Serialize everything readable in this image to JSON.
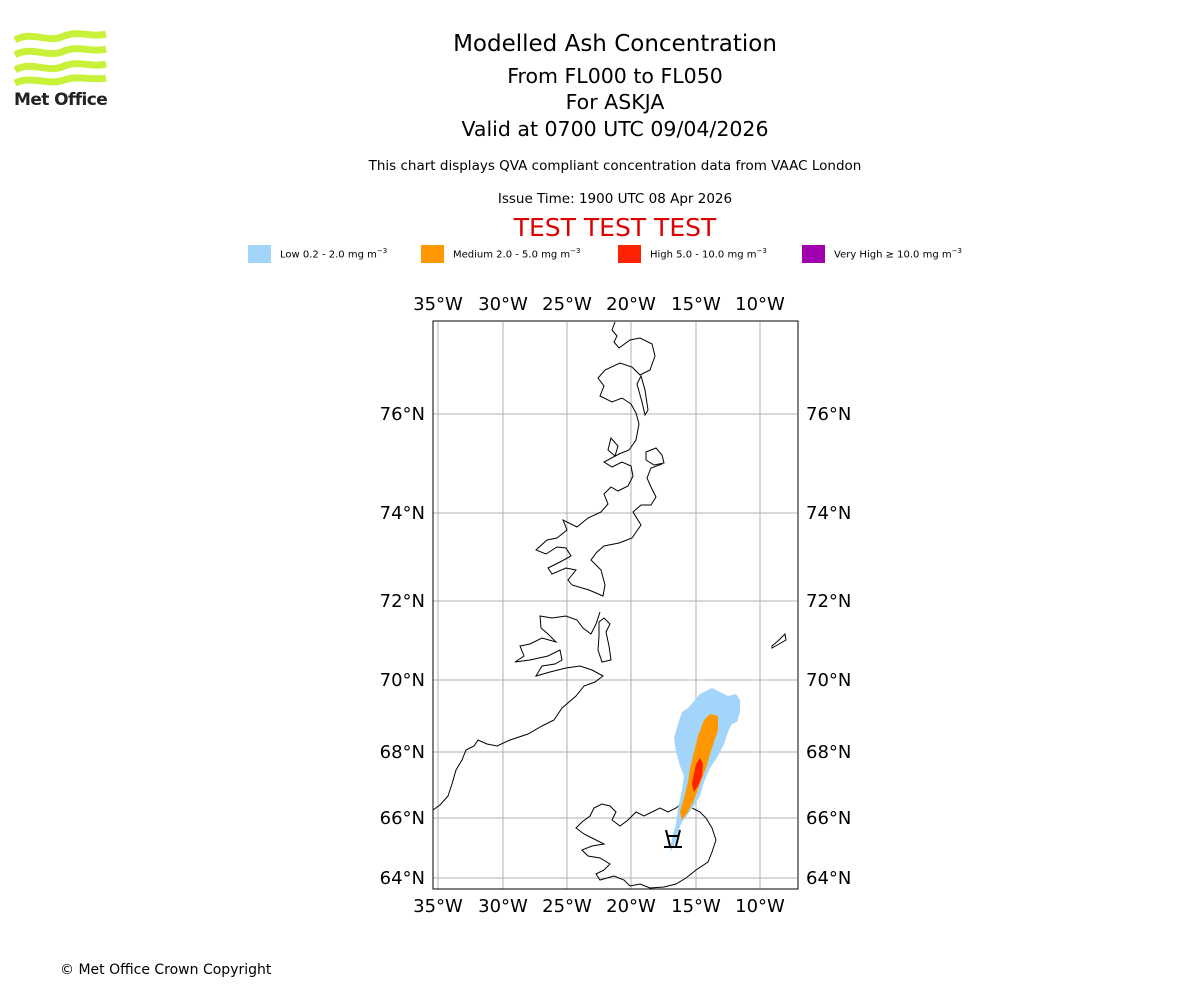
{
  "logo": {
    "text": "Met Office",
    "color": "#c8f23a"
  },
  "header": {
    "title": "Modelled Ash Concentration",
    "levels": "From FL000 to FL050",
    "volcano": "For ASKJA",
    "valid": "Valid at 0700 UTC 09/04/2026",
    "description": "This chart displays QVA compliant concentration data from VAAC London",
    "issue_time": "Issue Time: 1900 UTC 08 Apr 2026",
    "test_banner": "TEST TEST TEST",
    "test_color": "#dd0000"
  },
  "legend": [
    {
      "label": "Low 0.2 - 2.0 mg m",
      "exp": "−3",
      "color": "#a3d5fa"
    },
    {
      "label": "Medium 2.0 - 5.0 mg m",
      "exp": "−3",
      "color": "#ff9800"
    },
    {
      "label": "High 5.0 - 10.0 mg m",
      "exp": "−3",
      "color": "#ff2200"
    },
    {
      "label": "Very High  ≥  10.0 mg m",
      "exp": "−3",
      "color": "#a100b0"
    }
  ],
  "map": {
    "lon_labels": [
      "35°W",
      "30°W",
      "25°W",
      "20°W",
      "15°W",
      "10°W"
    ],
    "lat_labels": [
      "76°N",
      "74°N",
      "72°N",
      "70°N",
      "68°N",
      "66°N",
      "64°N"
    ]
  },
  "footer": {
    "copyright": "© Met Office Crown Copyright"
  }
}
